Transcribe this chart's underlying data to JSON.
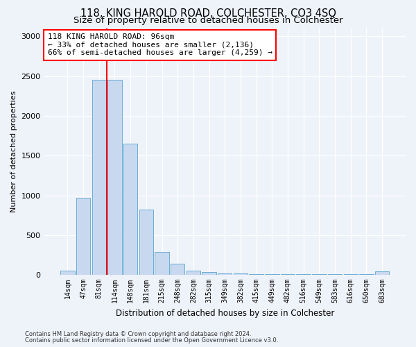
{
  "title": "118, KING HAROLD ROAD, COLCHESTER, CO3 4SQ",
  "subtitle": "Size of property relative to detached houses in Colchester",
  "xlabel": "Distribution of detached houses by size in Colchester",
  "ylabel": "Number of detached properties",
  "bar_labels": [
    "14sqm",
    "47sqm",
    "81sqm",
    "114sqm",
    "148sqm",
    "181sqm",
    "215sqm",
    "248sqm",
    "282sqm",
    "315sqm",
    "349sqm",
    "382sqm",
    "415sqm",
    "449sqm",
    "482sqm",
    "516sqm",
    "549sqm",
    "583sqm",
    "616sqm",
    "650sqm",
    "683sqm"
  ],
  "bar_values": [
    55,
    970,
    2450,
    2450,
    1650,
    820,
    285,
    140,
    55,
    35,
    20,
    15,
    10,
    8,
    8,
    7,
    5,
    5,
    5,
    5,
    40
  ],
  "bar_color": "#c8d9ef",
  "bar_edgecolor": "#6aaed6",
  "vline_x": 2.5,
  "vline_color": "red",
  "annotation_text": "118 KING HAROLD ROAD: 96sqm\n← 33% of detached houses are smaller (2,136)\n66% of semi-detached houses are larger (4,259) →",
  "annotation_box_edgecolor": "red",
  "annotation_box_facecolor": "white",
  "ylim": [
    0,
    3100
  ],
  "yticks": [
    0,
    500,
    1000,
    1500,
    2000,
    2500,
    3000
  ],
  "footnote1": "Contains HM Land Registry data © Crown copyright and database right 2024.",
  "footnote2": "Contains public sector information licensed under the Open Government Licence v3.0.",
  "bg_color": "#eef2f9",
  "plot_bg_color": "#eef2f9",
  "grid_color": "#ffffff",
  "title_fontsize": 10.5,
  "subtitle_fontsize": 9.5,
  "annotation_fontsize": 8.0
}
